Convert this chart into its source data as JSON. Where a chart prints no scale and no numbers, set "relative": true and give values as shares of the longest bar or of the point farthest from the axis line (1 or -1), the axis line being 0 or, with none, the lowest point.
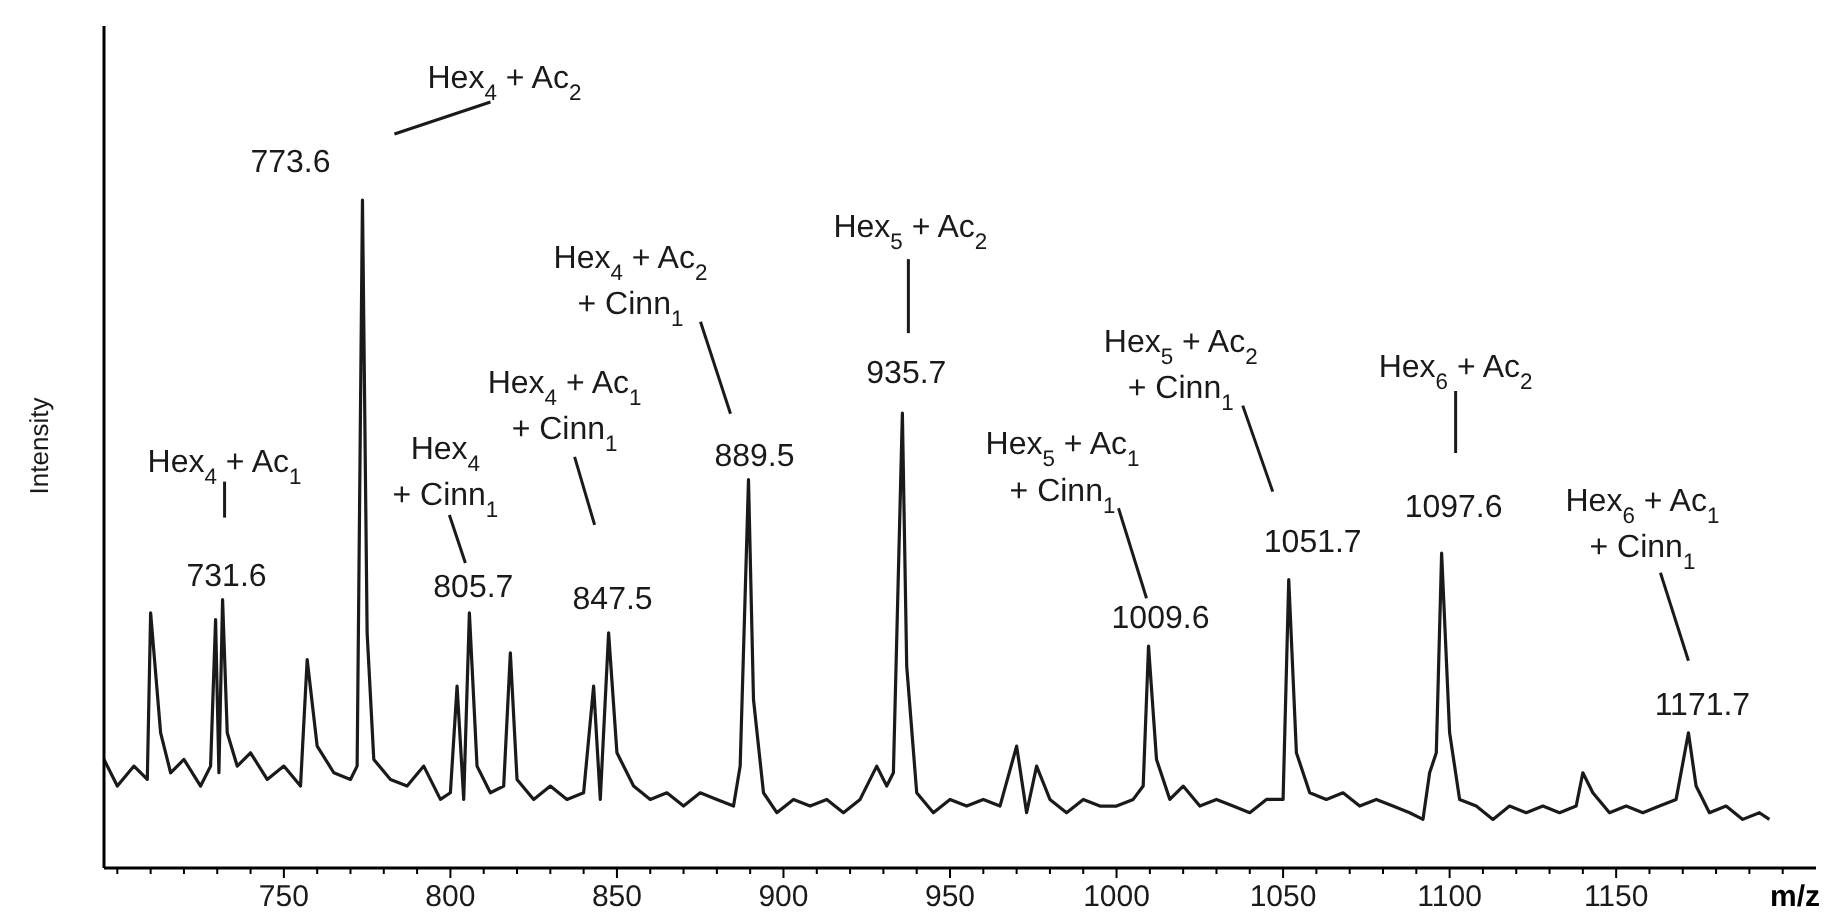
{
  "chart_data": {
    "type": "line",
    "relative": true,
    "ylabel": "Intensity",
    "xlabel": "m/z",
    "xlim": [
      696,
      1210
    ],
    "xticks": [
      {
        "value": 700,
        "label": null
      },
      {
        "value": 710,
        "label": null
      },
      {
        "value": 720,
        "label": null
      },
      {
        "value": 730,
        "label": null
      },
      {
        "value": 740,
        "label": null
      },
      750,
      {
        "value": 760,
        "label": null
      },
      {
        "value": 770,
        "label": null
      },
      {
        "value": 780,
        "label": null
      },
      {
        "value": 790,
        "label": null
      },
      800,
      {
        "value": 810,
        "label": null
      },
      {
        "value": 820,
        "label": null
      },
      {
        "value": 830,
        "label": null
      },
      {
        "value": 840,
        "label": null
      },
      850,
      {
        "value": 860,
        "label": null
      },
      {
        "value": 870,
        "label": null
      },
      {
        "value": 880,
        "label": null
      },
      {
        "value": 890,
        "label": null
      },
      900,
      {
        "value": 910,
        "label": null
      },
      {
        "value": 920,
        "label": null
      },
      {
        "value": 930,
        "label": null
      },
      {
        "value": 940,
        "label": null
      },
      950,
      {
        "value": 960,
        "label": null
      },
      {
        "value": 970,
        "label": null
      },
      {
        "value": 980,
        "label": null
      },
      {
        "value": 990,
        "label": null
      },
      1000,
      {
        "value": 1010,
        "label": null
      },
      {
        "value": 1020,
        "label": null
      },
      {
        "value": 1030,
        "label": null
      },
      {
        "value": 1040,
        "label": null
      },
      1050,
      {
        "value": 1060,
        "label": null
      },
      {
        "value": 1070,
        "label": null
      },
      {
        "value": 1080,
        "label": null
      },
      {
        "value": 1090,
        "label": null
      },
      1100,
      {
        "value": 1110,
        "label": null
      },
      {
        "value": 1120,
        "label": null
      },
      {
        "value": 1130,
        "label": null
      },
      {
        "value": 1140,
        "label": null
      },
      1150,
      {
        "value": 1160,
        "label": null
      },
      {
        "value": 1170,
        "label": null
      },
      {
        "value": 1180,
        "label": null
      },
      {
        "value": 1190,
        "label": null
      },
      {
        "value": 1200,
        "label": null
      }
    ],
    "x": [
      696,
      700,
      705,
      709,
      710,
      713,
      716,
      720,
      725,
      728,
      729.5,
      730.5,
      731.6,
      733,
      736,
      740,
      745,
      750,
      755,
      757,
      760,
      765,
      770,
      772,
      773.6,
      775,
      777,
      782,
      787,
      792,
      797,
      800,
      802,
      804,
      805.7,
      808,
      812,
      816,
      818,
      820,
      825,
      830,
      835,
      840,
      843,
      845,
      847.5,
      850,
      855,
      860,
      865,
      870,
      875,
      880,
      885,
      887,
      889.5,
      891,
      894,
      898,
      903,
      908,
      913,
      918,
      923,
      928,
      931,
      933,
      935.7,
      937,
      940,
      945,
      950,
      955,
      960,
      965,
      970,
      973,
      976,
      980,
      985,
      990,
      995,
      1000,
      1005,
      1008,
      1009.6,
      1012,
      1016,
      1020,
      1025,
      1030,
      1035,
      1040,
      1045,
      1050,
      1051.7,
      1054,
      1058,
      1063,
      1068,
      1073,
      1078,
      1083,
      1088,
      1092,
      1094,
      1096,
      1097.6,
      1100,
      1103,
      1108,
      1113,
      1118,
      1123,
      1128,
      1133,
      1138,
      1140,
      1143,
      1148,
      1153,
      1158,
      1163,
      1168,
      1171.7,
      1174,
      1178,
      1183,
      1188,
      1193,
      1196
    ],
    "series": [
      {
        "color": "#1a1a1a",
        "values": [
          0.16,
          0.12,
          0.15,
          0.13,
          0.38,
          0.2,
          0.14,
          0.16,
          0.12,
          0.15,
          0.37,
          0.14,
          0.4,
          0.2,
          0.15,
          0.17,
          0.13,
          0.15,
          0.12,
          0.31,
          0.18,
          0.14,
          0.13,
          0.15,
          1.0,
          0.35,
          0.16,
          0.13,
          0.12,
          0.15,
          0.1,
          0.11,
          0.27,
          0.1,
          0.38,
          0.15,
          0.11,
          0.12,
          0.32,
          0.13,
          0.1,
          0.12,
          0.1,
          0.11,
          0.27,
          0.1,
          0.35,
          0.17,
          0.12,
          0.1,
          0.11,
          0.09,
          0.11,
          0.1,
          0.09,
          0.15,
          0.58,
          0.25,
          0.11,
          0.08,
          0.1,
          0.09,
          0.1,
          0.08,
          0.1,
          0.15,
          0.12,
          0.14,
          0.68,
          0.3,
          0.11,
          0.08,
          0.1,
          0.09,
          0.1,
          0.09,
          0.18,
          0.08,
          0.15,
          0.1,
          0.08,
          0.1,
          0.09,
          0.09,
          0.1,
          0.12,
          0.33,
          0.16,
          0.1,
          0.12,
          0.09,
          0.1,
          0.09,
          0.08,
          0.1,
          0.1,
          0.43,
          0.17,
          0.11,
          0.1,
          0.11,
          0.09,
          0.1,
          0.09,
          0.08,
          0.07,
          0.14,
          0.17,
          0.47,
          0.2,
          0.1,
          0.09,
          0.07,
          0.09,
          0.08,
          0.09,
          0.08,
          0.09,
          0.14,
          0.11,
          0.08,
          0.09,
          0.08,
          0.09,
          0.1,
          0.2,
          0.12,
          0.08,
          0.09,
          0.07,
          0.08,
          0.07
        ]
      }
    ],
    "annotations": [
      {
        "text": "731.6",
        "x": 731.6,
        "y": 0.4
      },
      "Hex$_{4}$ + Ac$_{1}$",
      {
        "text": "773.6",
        "x": 773.6,
        "y": 1.0
      },
      "Hex$_{4}$ + Ac$_{2}$",
      {
        "text": "805.7",
        "x": 805.7,
        "y": 0.38
      },
      "Hex$_{4}$\n+ Cinn$_{1}$",
      {
        "text": "847.5",
        "x": 847.5,
        "y": 0.35
      },
      "Hex$_{4}$ + Ac$_{1}$\n+ Cinn$_{1}$",
      {
        "text": "889.5",
        "x": 889.5,
        "y": 0.58
      },
      "Hex$_{4}$ + Ac$_{2}$\n+ Cinn$_{1}$",
      {
        "text": "935.7",
        "x": 935.7,
        "y": 0.68
      },
      "Hex$_{5}$ + Ac$_{2}$",
      {
        "text": "1009.6",
        "x": 1009.6,
        "y": 0.33
      },
      "Hex$_{5}$ + Ac$_{1}$\n+ Cinn$_{1}$",
      {
        "text": "1051.7",
        "x": 1051.7,
        "y": 0.43
      },
      "Hex$_{5}$ + Ac$_{2}$\n+ Cinn$_{1}$",
      {
        "text": "1097.6",
        "x": 1097.6,
        "y": 0.47
      },
      "Hex$_{6}$ + Ac$_{2}$",
      {
        "text": "1171.7",
        "x": 1171.7,
        "y": 0.2
      },
      "Hex$_{6}$ + Ac$_{1}$\n+ Cinn$_{1}$"
    ]
  }
}
